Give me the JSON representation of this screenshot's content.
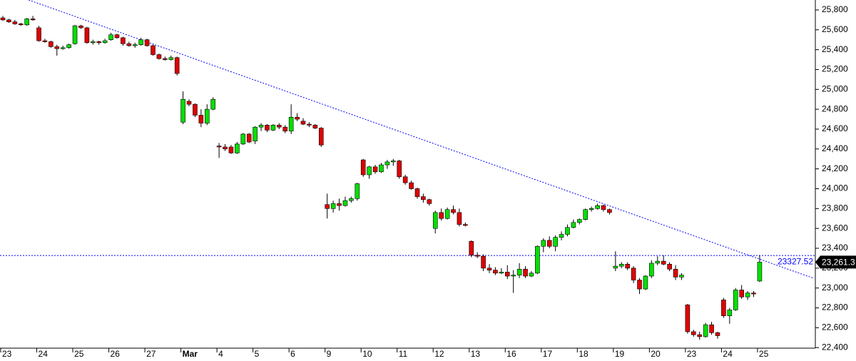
{
  "chart_data": {
    "type": "candlestick",
    "categories": [
      "23",
      null,
      null,
      null,
      null,
      null,
      "24",
      null,
      null,
      null,
      null,
      null,
      "25",
      null,
      null,
      null,
      null,
      null,
      "26",
      null,
      null,
      null,
      null,
      null,
      "27",
      null,
      null,
      null,
      null,
      null,
      "Mar",
      null,
      null,
      null,
      null,
      null,
      "4",
      null,
      null,
      null,
      null,
      null,
      "5",
      null,
      null,
      null,
      null,
      null,
      "6",
      null,
      null,
      null,
      null,
      null,
      "9",
      null,
      null,
      null,
      null,
      null,
      "10",
      null,
      null,
      null,
      null,
      null,
      "11",
      null,
      null,
      null,
      null,
      null,
      "12",
      null,
      null,
      null,
      null,
      null,
      "13",
      null,
      null,
      null,
      null,
      null,
      "16",
      null,
      null,
      null,
      null,
      null,
      "17",
      null,
      null,
      null,
      null,
      null,
      "18",
      null,
      null,
      null,
      null,
      null,
      "19",
      null,
      null,
      null,
      null,
      null,
      "20",
      null,
      null,
      null,
      null,
      null,
      "23",
      null,
      null,
      null,
      null,
      null,
      "24",
      null,
      null,
      null,
      null,
      null,
      "25"
    ],
    "open": [
      25720,
      25700,
      25680,
      25660,
      25650,
      25710,
      25620,
      25490,
      25480,
      25430,
      25410,
      25420,
      25460,
      25640,
      25620,
      25470,
      25480,
      25470,
      25500,
      25550,
      25520,
      25460,
      25440,
      25450,
      25500,
      25440,
      25350,
      25310,
      25300,
      25320,
      24670,
      24880,
      24850,
      24740,
      24660,
      24800,
      24430,
      24420,
      24420,
      24360,
      24450,
      24550,
      24480,
      24620,
      24640,
      24590,
      24640,
      24620,
      24580,
      24720,
      24680,
      24650,
      24640,
      24610,
      23840,
      23800,
      23850,
      23830,
      23880,
      23900,
      24290,
      24140,
      24220,
      24170,
      24240,
      24270,
      24280,
      24120,
      24060,
      24000,
      23920,
      23890,
      23600,
      23760,
      23700,
      23790,
      23760,
      23640,
      23470,
      23330,
      23320,
      23200,
      23180,
      23150,
      23160,
      23120,
      23130,
      23190,
      23120,
      23150,
      23420,
      23480,
      23420,
      23510,
      23540,
      23610,
      23660,
      23690,
      23790,
      23800,
      23830,
      23790,
      23200,
      23220,
      23240,
      23200,
      23080,
      22990,
      23120,
      23250,
      23270,
      23240,
      23190,
      23110,
      22830,
      22560,
      22530,
      22510,
      22630,
      22550,
      22880,
      22720,
      22780,
      22980,
      22910,
      22950,
      23070
    ],
    "high": [
      25740,
      25710,
      25700,
      25670,
      25720,
      25740,
      25640,
      25510,
      25490,
      25450,
      25440,
      25460,
      25650,
      25650,
      25630,
      25500,
      25490,
      25510,
      25570,
      25560,
      25530,
      25480,
      25470,
      25520,
      25510,
      25450,
      25360,
      25330,
      25340,
      25330,
      24980,
      24900,
      24860,
      24800,
      24850,
      24920,
      24460,
      24450,
      24440,
      24470,
      24560,
      24560,
      24630,
      24660,
      24650,
      24650,
      24660,
      24640,
      24850,
      24760,
      24710,
      24670,
      24650,
      24620,
      23950,
      23880,
      23900,
      23920,
      23920,
      24060,
      24300,
      24230,
      24240,
      24260,
      24290,
      24300,
      24290,
      24140,
      24080,
      24010,
      23950,
      23900,
      23780,
      23800,
      23810,
      23830,
      23800,
      23660,
      23480,
      23360,
      23340,
      23240,
      23210,
      23200,
      23230,
      23180,
      23250,
      23220,
      23170,
      23430,
      23500,
      23520,
      23530,
      23570,
      23640,
      23690,
      23700,
      23800,
      23820,
      23850,
      23840,
      23800,
      23370,
      23260,
      23260,
      23220,
      23100,
      23130,
      23280,
      23320,
      23330,
      23260,
      23230,
      23150,
      22840,
      22580,
      22560,
      22650,
      22660,
      22560,
      22900,
      22800,
      23000,
      23030,
      22970,
      22970,
      23330
    ],
    "low": [
      25690,
      25670,
      25650,
      25640,
      25640,
      25690,
      25480,
      25470,
      25420,
      25340,
      25400,
      25410,
      25450,
      25610,
      25460,
      25450,
      25450,
      25460,
      25490,
      25510,
      25440,
      25430,
      25420,
      25440,
      25430,
      25340,
      25300,
      25290,
      25290,
      25140,
      24650,
      24830,
      24720,
      24620,
      24640,
      24790,
      24310,
      24380,
      24350,
      24350,
      24440,
      24460,
      24450,
      24580,
      24570,
      24580,
      24600,
      24560,
      24550,
      24680,
      24640,
      24620,
      24600,
      24420,
      23700,
      23760,
      23780,
      23820,
      23860,
      23880,
      24120,
      24100,
      24150,
      24160,
      24200,
      24230,
      24100,
      24040,
      23990,
      23900,
      23860,
      23830,
      23550,
      23680,
      23690,
      23740,
      23620,
      23620,
      23310,
      23300,
      23170,
      23150,
      23130,
      23140,
      23090,
      22950,
      23100,
      23100,
      23110,
      23140,
      23360,
      23400,
      23370,
      23480,
      23520,
      23600,
      23640,
      23680,
      23770,
      23790,
      23770,
      23740,
      23170,
      23200,
      23180,
      23050,
      22940,
      22980,
      23100,
      23230,
      23230,
      23170,
      23080,
      23080,
      22540,
      22510,
      22480,
      22500,
      22530,
      22490,
      22700,
      22640,
      22770,
      22890,
      22880,
      22910,
      23060
    ],
    "close": [
      25700,
      25680,
      25660,
      25650,
      25710,
      25700,
      25490,
      25480,
      25430,
      25410,
      25420,
      25450,
      25640,
      25620,
      25470,
      25480,
      25470,
      25490,
      25550,
      25520,
      25460,
      25440,
      25450,
      25500,
      25440,
      25350,
      25310,
      25300,
      25320,
      25160,
      24900,
      24850,
      24740,
      24660,
      24800,
      24900,
      24420,
      24400,
      24360,
      24450,
      24550,
      24470,
      24620,
      24640,
      24590,
      24640,
      24620,
      24580,
      24720,
      24700,
      24650,
      24640,
      24610,
      24440,
      23800,
      23850,
      23830,
      23880,
      23900,
      24050,
      24140,
      24220,
      24170,
      24240,
      24270,
      24280,
      24120,
      24060,
      24000,
      23920,
      23890,
      23850,
      23760,
      23700,
      23790,
      23760,
      23640,
      23630,
      23330,
      23320,
      23200,
      23180,
      23150,
      23160,
      23120,
      23130,
      23190,
      23120,
      23150,
      23420,
      23480,
      23420,
      23510,
      23540,
      23610,
      23660,
      23690,
      23790,
      23800,
      23830,
      23790,
      23760,
      23220,
      23240,
      23200,
      23080,
      22990,
      23120,
      23250,
      23270,
      23240,
      23190,
      23110,
      23130,
      22560,
      22530,
      22510,
      22630,
      22550,
      22520,
      22720,
      22780,
      22980,
      22910,
      22950,
      22940,
      23261.3
    ],
    "up_color": "#00e000",
    "down_color": "#e00000",
    "ylim": [
      22380,
      25900
    ],
    "yticks": [
      {
        "value": 22400,
        "label": "22,400"
      },
      {
        "value": 22600,
        "label": "22,600"
      },
      {
        "value": 22800,
        "label": "22,800"
      },
      {
        "value": 23000,
        "label": "23,000"
      },
      {
        "value": 23200,
        "label": "23,200"
      },
      {
        "value": 23400,
        "label": "23,400"
      },
      {
        "value": 23600,
        "label": "23,600"
      },
      {
        "value": 23800,
        "label": "23,800"
      },
      {
        "value": 24000,
        "label": "24,000"
      },
      {
        "value": 24200,
        "label": "24,200"
      },
      {
        "value": 24400,
        "label": "24,400"
      },
      {
        "value": 24600,
        "label": "24,600"
      },
      {
        "value": 24800,
        "label": "24,800"
      },
      {
        "value": 25000,
        "label": "25,000"
      },
      {
        "value": 25200,
        "label": "25,200"
      },
      {
        "value": 25400,
        "label": "25,400"
      },
      {
        "value": 25600,
        "label": "25,600"
      },
      {
        "value": 25800,
        "label": "25,800"
      }
    ],
    "trendline": {
      "x": [
        4.3,
        134.9
      ],
      "y": [
        25900,
        23100
      ],
      "color": "#0000ff"
    },
    "hline": 23327.52,
    "last_price": {
      "value": 23261.3,
      "label": "23,261.3"
    }
  }
}
